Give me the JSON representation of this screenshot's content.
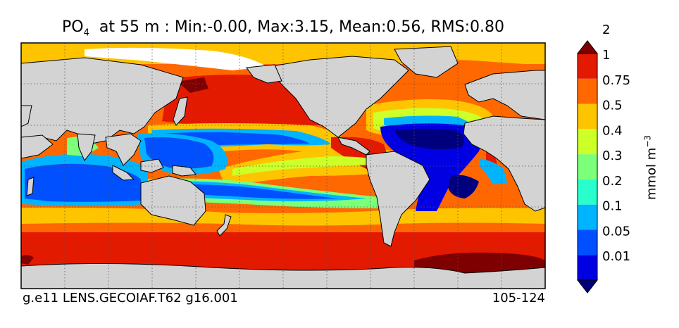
{
  "chart_data": {
    "type": "heatmap",
    "title_main": "PO",
    "title_sub": "4",
    "title_rest": "at 55 m : Min:-0.00, Max:3.15, Mean:0.56, RMS:0.80",
    "stats": {
      "min": -0.0,
      "max": 3.15,
      "mean": 0.56,
      "rms": 0.8
    },
    "depth": "55 m",
    "footer_left": "g.e11 LENS.GECOIAF.T62 g16.001",
    "footer_right": "105-124",
    "colorbar": {
      "unit_label": "mmol m",
      "unit_exp": "−3",
      "extend": "both",
      "levels": [
        "0.01",
        "0.05",
        "0.1",
        "0.2",
        "0.3",
        "0.4",
        "0.5",
        "0.75",
        "1",
        "2"
      ],
      "colors": [
        "#00007f",
        "#0000e3",
        "#0050ff",
        "#00b4ff",
        "#29ffcd",
        "#7cff79",
        "#cdff29",
        "#ffc400",
        "#ff6800",
        "#e41a00",
        "#7f0000"
      ]
    },
    "map": {
      "projection": "cylindrical",
      "grid": "dotted",
      "land_color": "#d3d3d3",
      "no_data_color": "#ffffff"
    }
  }
}
